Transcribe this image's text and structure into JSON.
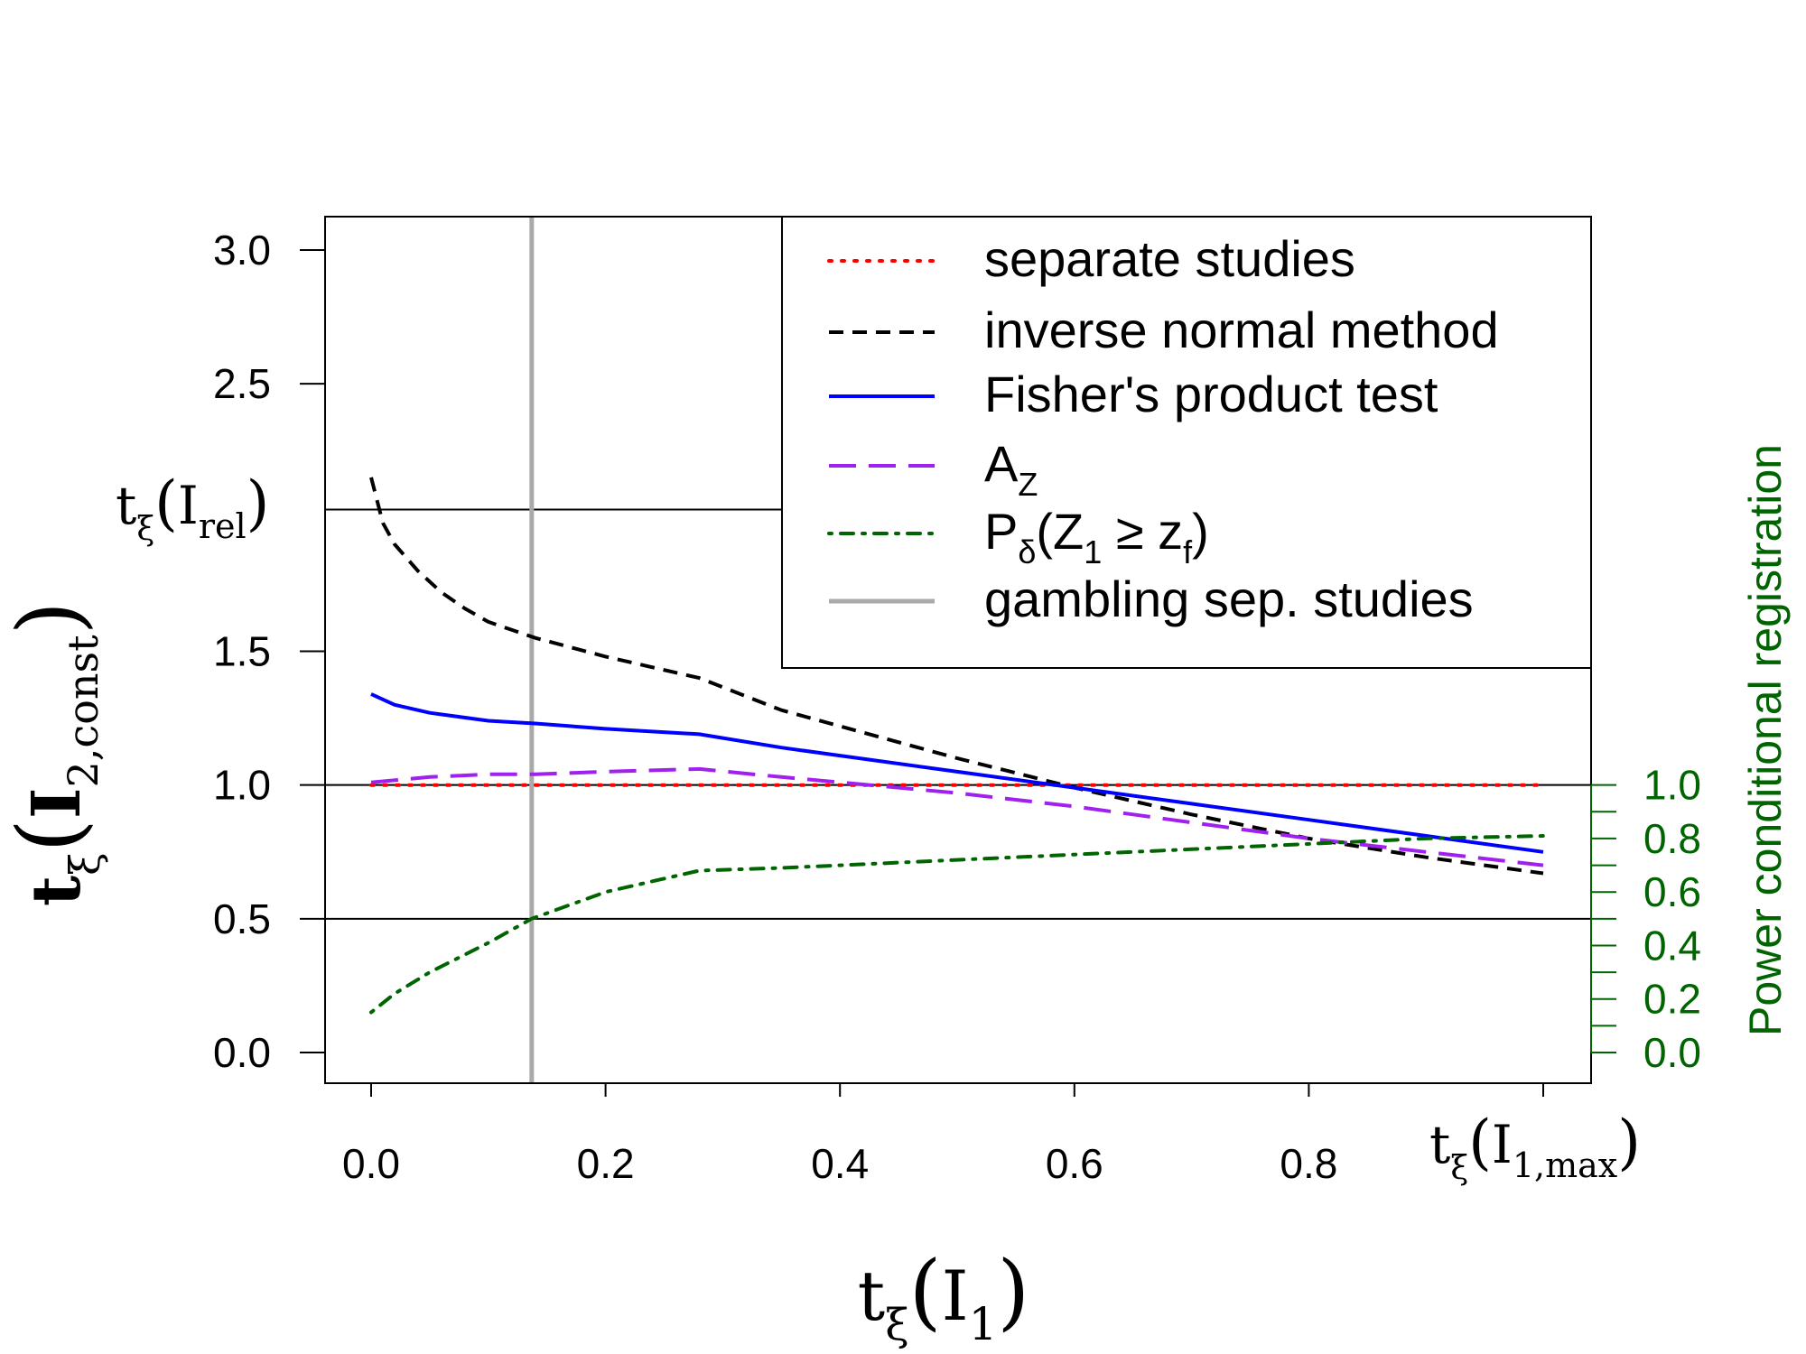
{
  "chart_data": {
    "type": "line",
    "xlim": [
      0,
      1
    ],
    "ylim": [
      0,
      3.1
    ],
    "y2lim": [
      0,
      1
    ],
    "x_ticks": [
      0.0,
      0.2,
      0.4,
      0.6,
      0.8
    ],
    "x_tick_labels": [
      "0.0",
      "0.2",
      "0.4",
      "0.6",
      "0.8"
    ],
    "y_ticks": [
      0.0,
      0.5,
      1.0,
      1.5,
      2.5,
      3.0
    ],
    "y_tick_labels": [
      "0.0",
      "0.5",
      "1.0",
      "1.5",
      "2.5",
      "3.0"
    ],
    "y2_ticks": [
      0.0,
      0.2,
      0.4,
      0.6,
      0.8,
      1.0
    ],
    "y2_minor_ticks": [
      0.1,
      0.3,
      0.5,
      0.7,
      0.9
    ],
    "y2_tick_labels": [
      "0.0",
      "0.2",
      "0.4",
      "0.6",
      "0.8",
      "1.0"
    ],
    "hlines": [
      2.03,
      1.0,
      0.5
    ],
    "vline_x": 0.137,
    "xlabel": {
      "t": "t",
      "sub": "ξ",
      "arg": "I",
      "argsub": "1"
    },
    "ylabel": {
      "t": "t",
      "sub": "ξ",
      "arg": "I",
      "argsub": "2,const"
    },
    "y2label": "Power conditional registration",
    "annot_y_irel": {
      "t": "t",
      "sub": "ξ",
      "arg": "I",
      "argsub": "rel"
    },
    "annot_x_imax": {
      "t": "t",
      "sub": "ξ",
      "arg": "I",
      "argsub": "1,max"
    },
    "legend": {
      "position": "top-right",
      "entries": [
        {
          "label": "separate studies",
          "color": "#ff0000",
          "style": "dotted"
        },
        {
          "label": "inverse normal method",
          "color": "#000000",
          "style": "dashed"
        },
        {
          "label": "Fisher's product test",
          "color": "#0000ff",
          "style": "solid"
        },
        {
          "label_main": "A",
          "label_sub": "Z",
          "color": "#a020f0",
          "style": "longdash"
        },
        {
          "label_p": "P",
          "label_psub": "δ",
          "label_open": "(Z",
          "label_one": "1",
          "label_geq": " ≥ z",
          "label_f": "f",
          "label_close": ")",
          "color": "#006400",
          "style": "dotdash"
        },
        {
          "label": "gambling sep. studies",
          "color": "#aaaaaa",
          "style": "solid"
        }
      ]
    },
    "series": [
      {
        "name": "separate studies",
        "axis": "left",
        "color": "#ff0000",
        "x": [
          0,
          1
        ],
        "y": [
          1.0,
          1.0
        ]
      },
      {
        "name": "inverse normal method",
        "axis": "left",
        "color": "#000000",
        "x": [
          0.0,
          0.01,
          0.02,
          0.04,
          0.06,
          0.08,
          0.1,
          0.14,
          0.2,
          0.28,
          0.35,
          0.4,
          0.5,
          0.6,
          0.7,
          0.8,
          0.9,
          1.0
        ],
        "y": [
          2.15,
          1.98,
          1.9,
          1.8,
          1.72,
          1.66,
          1.61,
          1.55,
          1.48,
          1.4,
          1.28,
          1.22,
          1.1,
          0.99,
          0.89,
          0.8,
          0.73,
          0.67
        ]
      },
      {
        "name": "Fisher's product test",
        "axis": "left",
        "color": "#0000ff",
        "x": [
          0.0,
          0.02,
          0.05,
          0.1,
          0.14,
          0.2,
          0.28,
          0.35,
          0.4,
          0.5,
          0.6,
          0.7,
          0.8,
          0.9,
          1.0
        ],
        "y": [
          1.34,
          1.3,
          1.27,
          1.24,
          1.23,
          1.21,
          1.19,
          1.14,
          1.11,
          1.05,
          0.99,
          0.93,
          0.87,
          0.81,
          0.75
        ]
      },
      {
        "name": "A_Z",
        "axis": "left",
        "color": "#a020f0",
        "x": [
          0.0,
          0.05,
          0.1,
          0.14,
          0.2,
          0.28,
          0.35,
          0.4,
          0.5,
          0.6,
          0.7,
          0.8,
          0.9,
          1.0
        ],
        "y": [
          1.01,
          1.03,
          1.04,
          1.04,
          1.05,
          1.06,
          1.03,
          1.01,
          0.97,
          0.92,
          0.86,
          0.8,
          0.75,
          0.7
        ]
      },
      {
        "name": "P_delta(Z1 >= zf)",
        "axis": "right",
        "color": "#006400",
        "x": [
          0.0,
          0.02,
          0.05,
          0.1,
          0.137,
          0.2,
          0.28,
          0.35,
          0.4,
          0.5,
          0.6,
          0.7,
          0.8,
          0.9,
          1.0
        ],
        "y": [
          0.15,
          0.22,
          0.3,
          0.41,
          0.5,
          0.6,
          0.68,
          0.69,
          0.7,
          0.72,
          0.74,
          0.76,
          0.78,
          0.8,
          0.81
        ]
      }
    ]
  }
}
